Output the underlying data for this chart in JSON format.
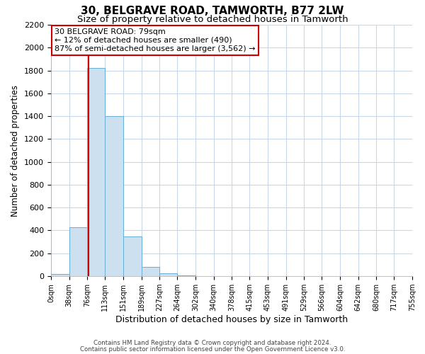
{
  "title": "30, BELGRAVE ROAD, TAMWORTH, B77 2LW",
  "subtitle": "Size of property relative to detached houses in Tamworth",
  "xlabel": "Distribution of detached houses by size in Tamworth",
  "ylabel": "Number of detached properties",
  "bar_edges": [
    0,
    38,
    76,
    113,
    151,
    189,
    227,
    264,
    302,
    340,
    378,
    415,
    453,
    491,
    529,
    566,
    604,
    642,
    680,
    717,
    755
  ],
  "bar_heights": [
    20,
    430,
    1820,
    1400,
    350,
    80,
    25,
    5,
    0,
    0,
    0,
    0,
    0,
    0,
    0,
    0,
    0,
    0,
    0,
    0
  ],
  "bar_color": "#cce0f0",
  "bar_edge_color": "#6aaed6",
  "grid_color": "#c8d8e8",
  "property_size": 79,
  "property_line_color": "#cc0000",
  "annotation_text_line1": "30 BELGRAVE ROAD: 79sqm",
  "annotation_text_line2": "← 12% of detached houses are smaller (490)",
  "annotation_text_line3": "87% of semi-detached houses are larger (3,562) →",
  "annotation_box_color": "#ffffff",
  "annotation_box_edge_color": "#cc0000",
  "ylim": [
    0,
    2200
  ],
  "yticks": [
    0,
    200,
    400,
    600,
    800,
    1000,
    1200,
    1400,
    1600,
    1800,
    2000,
    2200
  ],
  "tick_labels": [
    "0sqm",
    "38sqm",
    "76sqm",
    "113sqm",
    "151sqm",
    "189sqm",
    "227sqm",
    "264sqm",
    "302sqm",
    "340sqm",
    "378sqm",
    "415sqm",
    "453sqm",
    "491sqm",
    "529sqm",
    "566sqm",
    "604sqm",
    "642sqm",
    "680sqm",
    "717sqm",
    "755sqm"
  ],
  "footer_line1": "Contains HM Land Registry data © Crown copyright and database right 2024.",
  "footer_line2": "Contains public sector information licensed under the Open Government Licence v3.0.",
  "bg_color": "#ffffff",
  "title_fontsize": 11,
  "subtitle_fontsize": 9.5,
  "xlabel_fontsize": 9,
  "ylabel_fontsize": 8.5,
  "ytick_fontsize": 8,
  "xtick_fontsize": 7
}
